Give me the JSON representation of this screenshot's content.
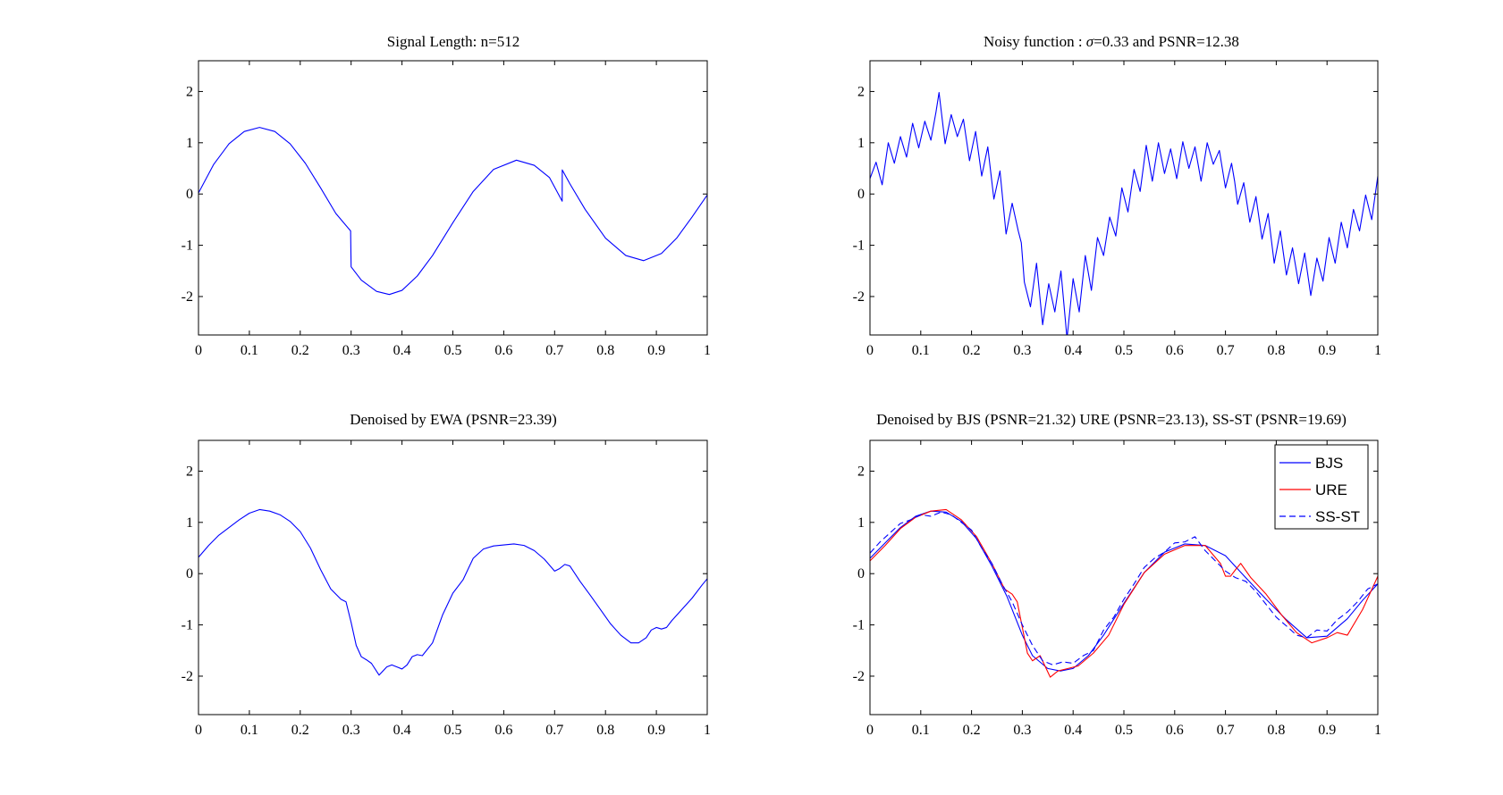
{
  "figure": {
    "panels": [
      {
        "id": "p1",
        "title": "Signal Length: n=512"
      },
      {
        "id": "p2",
        "title_prefix": "Noisy function : ",
        "title_sigma": "σ",
        "title_suffix": "=0.33 and PSNR=12.38"
      },
      {
        "id": "p3",
        "title": "Denoised by EWA (PSNR=23.39)"
      },
      {
        "id": "p4",
        "title": "Denoised by BJS (PSNR=21.32) URE (PSNR=23.13), SS-ST (PSNR=19.69)"
      }
    ],
    "legend": {
      "entries": [
        {
          "label": "BJS",
          "color": "#0000ff",
          "style": "solid"
        },
        {
          "label": "URE",
          "color": "#ff0000",
          "style": "solid"
        },
        {
          "label": "SS-ST",
          "color": "#0000ff",
          "style": "dashed"
        }
      ]
    }
  },
  "chart_data": [
    {
      "type": "line",
      "title": "Signal Length: n=512",
      "xlabel": "",
      "ylabel": "",
      "xlim": [
        0,
        1
      ],
      "ylim": [
        -2.75,
        2.6
      ],
      "xticks": [
        0,
        0.1,
        0.2,
        0.3,
        0.4,
        0.5,
        0.6,
        0.7,
        0.8,
        0.9,
        1
      ],
      "yticks": [
        -2,
        -1,
        0,
        1,
        2
      ],
      "grid": false,
      "series": [
        {
          "color": "#0000ff",
          "style": "solid",
          "x": [
            0,
            0.03,
            0.06,
            0.09,
            0.12,
            0.15,
            0.18,
            0.21,
            0.24,
            0.27,
            0.299,
            0.3,
            0.32,
            0.35,
            0.375,
            0.4,
            0.43,
            0.46,
            0.5,
            0.54,
            0.58,
            0.625,
            0.66,
            0.69,
            0.7149,
            0.715,
            0.73,
            0.76,
            0.8,
            0.84,
            0.875,
            0.91,
            0.94,
            0.97,
            1
          ],
          "y": [
            0.02,
            0.58,
            0.98,
            1.22,
            1.3,
            1.22,
            0.98,
            0.6,
            0.12,
            -0.38,
            -0.72,
            -1.42,
            -1.68,
            -1.9,
            -1.96,
            -1.88,
            -1.6,
            -1.2,
            -0.56,
            0.05,
            0.48,
            0.66,
            0.56,
            0.32,
            -0.14,
            0.47,
            0.2,
            -0.3,
            -0.86,
            -1.2,
            -1.3,
            -1.16,
            -0.86,
            -0.45,
            -0.02
          ]
        }
      ]
    },
    {
      "type": "line",
      "title": "Noisy function : σ=0.33 and PSNR=12.38",
      "xlabel": "",
      "ylabel": "",
      "xlim": [
        0,
        1
      ],
      "ylim": [
        -2.75,
        2.6
      ],
      "xticks": [
        0,
        0.1,
        0.2,
        0.3,
        0.4,
        0.5,
        0.6,
        0.7,
        0.8,
        0.9,
        1
      ],
      "yticks": [
        -2,
        -1,
        0,
        1,
        2
      ],
      "grid": false,
      "series": [
        {
          "color": "#0000ff",
          "style": "solid",
          "x": [
            0,
            0.012,
            0.024,
            0.036,
            0.048,
            0.06,
            0.072,
            0.084,
            0.096,
            0.108,
            0.12,
            0.13,
            0.136,
            0.148,
            0.16,
            0.172,
            0.184,
            0.196,
            0.208,
            0.22,
            0.232,
            0.244,
            0.256,
            0.268,
            0.28,
            0.292,
            0.298,
            0.304,
            0.316,
            0.328,
            0.34,
            0.352,
            0.364,
            0.376,
            0.388,
            0.4,
            0.412,
            0.424,
            0.436,
            0.448,
            0.46,
            0.472,
            0.484,
            0.496,
            0.508,
            0.52,
            0.532,
            0.544,
            0.556,
            0.568,
            0.58,
            0.592,
            0.604,
            0.616,
            0.628,
            0.64,
            0.652,
            0.664,
            0.676,
            0.688,
            0.7,
            0.712,
            0.718,
            0.724,
            0.736,
            0.748,
            0.76,
            0.772,
            0.784,
            0.796,
            0.808,
            0.82,
            0.832,
            0.844,
            0.856,
            0.868,
            0.88,
            0.892,
            0.904,
            0.916,
            0.928,
            0.94,
            0.952,
            0.964,
            0.976,
            0.988,
            1
          ],
          "y": [
            0.3,
            0.62,
            0.18,
            1.0,
            0.6,
            1.12,
            0.72,
            1.38,
            0.9,
            1.42,
            1.05,
            1.6,
            1.98,
            0.98,
            1.55,
            1.12,
            1.46,
            0.65,
            1.22,
            0.35,
            0.92,
            -0.1,
            0.45,
            -0.78,
            -0.18,
            -0.72,
            -0.95,
            -1.72,
            -2.2,
            -1.35,
            -2.55,
            -1.75,
            -2.3,
            -1.5,
            -2.82,
            -1.65,
            -2.3,
            -1.2,
            -1.88,
            -0.85,
            -1.2,
            -0.45,
            -0.82,
            0.12,
            -0.35,
            0.48,
            0.05,
            0.95,
            0.25,
            1.0,
            0.4,
            0.88,
            0.3,
            1.02,
            0.5,
            0.92,
            0.25,
            1.0,
            0.58,
            0.85,
            0.12,
            0.6,
            0.25,
            -0.2,
            0.22,
            -0.55,
            -0.05,
            -0.88,
            -0.38,
            -1.35,
            -0.72,
            -1.58,
            -1.05,
            -1.75,
            -1.15,
            -1.98,
            -1.25,
            -1.7,
            -0.85,
            -1.35,
            -0.55,
            -1.05,
            -0.3,
            -0.72,
            -0.02,
            -0.5,
            0.35
          ]
        }
      ]
    },
    {
      "type": "line",
      "title": "Denoised by EWA (PSNR=23.39)",
      "xlabel": "",
      "ylabel": "",
      "xlim": [
        0,
        1
      ],
      "ylim": [
        -2.75,
        2.6
      ],
      "xticks": [
        0,
        0.1,
        0.2,
        0.3,
        0.4,
        0.5,
        0.6,
        0.7,
        0.8,
        0.9,
        1
      ],
      "yticks": [
        -2,
        -1,
        0,
        1,
        2
      ],
      "grid": false,
      "series": [
        {
          "color": "#0000ff",
          "style": "solid",
          "x": [
            0,
            0.02,
            0.04,
            0.06,
            0.08,
            0.1,
            0.12,
            0.14,
            0.16,
            0.18,
            0.2,
            0.22,
            0.24,
            0.26,
            0.28,
            0.29,
            0.3,
            0.31,
            0.32,
            0.33,
            0.34,
            0.355,
            0.37,
            0.38,
            0.39,
            0.4,
            0.41,
            0.42,
            0.43,
            0.44,
            0.46,
            0.48,
            0.5,
            0.52,
            0.54,
            0.56,
            0.58,
            0.6,
            0.62,
            0.64,
            0.66,
            0.68,
            0.7,
            0.71,
            0.72,
            0.73,
            0.75,
            0.77,
            0.79,
            0.81,
            0.83,
            0.85,
            0.865,
            0.88,
            0.89,
            0.9,
            0.91,
            0.92,
            0.93,
            0.95,
            0.97,
            0.99,
            1
          ],
          "y": [
            0.32,
            0.55,
            0.75,
            0.9,
            1.05,
            1.18,
            1.25,
            1.22,
            1.15,
            1.02,
            0.82,
            0.5,
            0.08,
            -0.3,
            -0.5,
            -0.55,
            -0.95,
            -1.4,
            -1.62,
            -1.68,
            -1.75,
            -1.98,
            -1.82,
            -1.78,
            -1.82,
            -1.86,
            -1.78,
            -1.62,
            -1.58,
            -1.6,
            -1.35,
            -0.8,
            -0.38,
            -0.12,
            0.3,
            0.48,
            0.54,
            0.56,
            0.58,
            0.55,
            0.45,
            0.28,
            0.05,
            0.1,
            0.18,
            0.15,
            -0.15,
            -0.42,
            -0.7,
            -0.98,
            -1.2,
            -1.35,
            -1.35,
            -1.25,
            -1.1,
            -1.05,
            -1.08,
            -1.05,
            -0.92,
            -0.7,
            -0.48,
            -0.22,
            -0.1
          ]
        }
      ]
    },
    {
      "type": "line",
      "title": "Denoised by BJS (PSNR=21.32) URE (PSNR=23.13), SS-ST (PSNR=19.69)",
      "xlabel": "",
      "ylabel": "",
      "xlim": [
        0,
        1
      ],
      "ylim": [
        -2.75,
        2.6
      ],
      "xticks": [
        0,
        0.1,
        0.2,
        0.3,
        0.4,
        0.5,
        0.6,
        0.7,
        0.8,
        0.9,
        1
      ],
      "yticks": [
        -2,
        -1,
        0,
        1,
        2
      ],
      "grid": false,
      "legend_position": "top-right",
      "series": [
        {
          "name": "BJS",
          "color": "#0000ff",
          "style": "solid",
          "x": [
            0,
            0.03,
            0.06,
            0.09,
            0.12,
            0.15,
            0.18,
            0.21,
            0.24,
            0.27,
            0.3,
            0.32,
            0.35,
            0.375,
            0.4,
            0.43,
            0.46,
            0.5,
            0.54,
            0.58,
            0.62,
            0.66,
            0.7,
            0.74,
            0.78,
            0.82,
            0.86,
            0.9,
            0.94,
            0.97,
            1
          ],
          "y": [
            0.3,
            0.6,
            0.9,
            1.12,
            1.22,
            1.2,
            1.02,
            0.68,
            0.15,
            -0.45,
            -1.2,
            -1.6,
            -1.85,
            -1.9,
            -1.85,
            -1.6,
            -1.2,
            -0.58,
            0.02,
            0.42,
            0.58,
            0.55,
            0.35,
            -0.08,
            -0.5,
            -0.9,
            -1.25,
            -1.22,
            -0.88,
            -0.52,
            -0.2
          ]
        },
        {
          "name": "URE",
          "color": "#ff0000",
          "style": "solid",
          "x": [
            0,
            0.03,
            0.06,
            0.09,
            0.12,
            0.15,
            0.18,
            0.21,
            0.24,
            0.265,
            0.28,
            0.29,
            0.3,
            0.31,
            0.32,
            0.335,
            0.355,
            0.37,
            0.39,
            0.41,
            0.44,
            0.47,
            0.5,
            0.54,
            0.58,
            0.62,
            0.66,
            0.69,
            0.7,
            0.71,
            0.72,
            0.73,
            0.75,
            0.78,
            0.81,
            0.84,
            0.87,
            0.9,
            0.92,
            0.94,
            0.97,
            1
          ],
          "y": [
            0.25,
            0.55,
            0.88,
            1.1,
            1.22,
            1.25,
            1.05,
            0.72,
            0.2,
            -0.3,
            -0.4,
            -0.55,
            -1.05,
            -1.55,
            -1.7,
            -1.6,
            -2.02,
            -1.9,
            -1.85,
            -1.8,
            -1.55,
            -1.2,
            -0.6,
            0.02,
            0.38,
            0.55,
            0.55,
            0.2,
            -0.05,
            -0.05,
            0.08,
            0.2,
            -0.08,
            -0.4,
            -0.8,
            -1.15,
            -1.35,
            -1.25,
            -1.15,
            -1.2,
            -0.7,
            -0.05
          ]
        },
        {
          "name": "SS-ST",
          "color": "#0000ff",
          "style": "dashed",
          "x": [
            0,
            0.02,
            0.04,
            0.06,
            0.08,
            0.1,
            0.12,
            0.14,
            0.16,
            0.18,
            0.2,
            0.22,
            0.24,
            0.26,
            0.28,
            0.3,
            0.32,
            0.34,
            0.36,
            0.38,
            0.4,
            0.42,
            0.44,
            0.46,
            0.48,
            0.5,
            0.52,
            0.54,
            0.56,
            0.58,
            0.6,
            0.62,
            0.64,
            0.66,
            0.68,
            0.7,
            0.72,
            0.74,
            0.76,
            0.78,
            0.8,
            0.82,
            0.84,
            0.86,
            0.88,
            0.9,
            0.92,
            0.94,
            0.96,
            0.98,
            1
          ],
          "y": [
            0.4,
            0.62,
            0.8,
            0.98,
            1.05,
            1.15,
            1.12,
            1.2,
            1.15,
            1.0,
            0.85,
            0.5,
            0.2,
            -0.2,
            -0.55,
            -1.0,
            -1.4,
            -1.7,
            -1.78,
            -1.72,
            -1.75,
            -1.6,
            -1.5,
            -1.1,
            -0.85,
            -0.5,
            -0.2,
            0.12,
            0.3,
            0.42,
            0.6,
            0.62,
            0.72,
            0.45,
            0.25,
            0.05,
            -0.08,
            -0.15,
            -0.35,
            -0.6,
            -0.85,
            -1.02,
            -1.2,
            -1.25,
            -1.1,
            -1.12,
            -0.9,
            -0.75,
            -0.55,
            -0.3,
            -0.2
          ]
        }
      ]
    }
  ]
}
